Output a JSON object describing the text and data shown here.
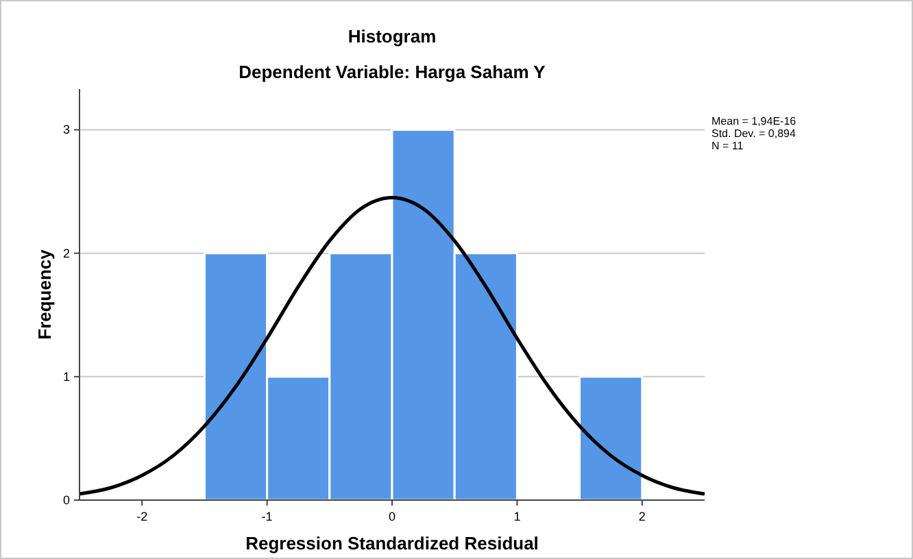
{
  "chart_data": {
    "type": "histogram",
    "title": "Histogram",
    "subtitle": "Dependent Variable: Harga Saham Y",
    "xlabel": "Regression Standardized Residual",
    "ylabel": "Frequency",
    "bins": [
      -1.5,
      -1,
      -0.5,
      0,
      0.5,
      1,
      1.5,
      2
    ],
    "values": [
      2,
      1,
      2,
      3,
      2,
      0,
      1
    ],
    "color": "#5596e6",
    "series": [
      {
        "type": "line",
        "color": "#000000",
        "x": [
          -2.5,
          -2.25,
          -2,
          -1.75,
          -1.5,
          -1.25,
          -1,
          -0.75,
          -0.5,
          -0.25,
          0,
          0.25,
          0.5,
          0.75,
          1,
          1.25,
          1.5,
          1.75,
          2,
          2.25,
          2.5
        ],
        "values": [
          0.05,
          0.1,
          0.2,
          0.36,
          0.6,
          0.92,
          1.31,
          1.73,
          2.1,
          2.36,
          2.45,
          2.36,
          2.1,
          1.73,
          1.31,
          0.92,
          0.6,
          0.36,
          0.2,
          0.1,
          0.05
        ]
      }
    ],
    "xlim": [
      -2.5,
      2.5
    ],
    "xticks": [
      -2,
      -1,
      0,
      1,
      2
    ],
    "ylim": [
      0,
      3.33
    ],
    "yticks": [
      0,
      1,
      2,
      3
    ],
    "grid": "y",
    "marker": "none",
    "line_style": "solid",
    "annotations": [
      "Mean = 1,94E-16",
      "Std. Dev. = 0,894",
      "N = 11"
    ]
  }
}
